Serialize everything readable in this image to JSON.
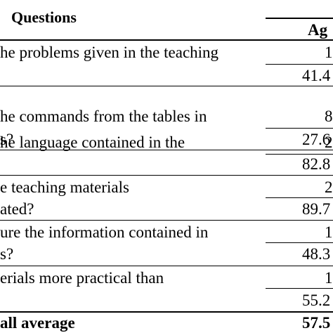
{
  "header": {
    "questions": "Questions",
    "agree": "Ag"
  },
  "rows": [
    {
      "question_lines": [
        "he problems given in the teaching",
        ""
      ],
      "count": "1",
      "percent": "41.4"
    },
    {
      "question_lines": [
        "he commands from the tables in",
        "s?"
      ],
      "count": "8",
      "percent": "27.6"
    },
    {
      "question_lines": [
        "he language contained in the",
        ""
      ],
      "count": "2",
      "percent": "82.8"
    },
    {
      "question_lines": [
        "e teaching materials",
        "ated?"
      ],
      "count": "2",
      "percent": "89.7"
    },
    {
      "question_lines": [
        "ure the information contained in",
        "s?"
      ],
      "count": "1",
      "percent": "48.3"
    },
    {
      "question_lines": [
        "erials more practical than",
        ""
      ],
      "count": "1",
      "percent": "55.2"
    }
  ],
  "footer": {
    "label": "all average",
    "value": "57.5"
  }
}
